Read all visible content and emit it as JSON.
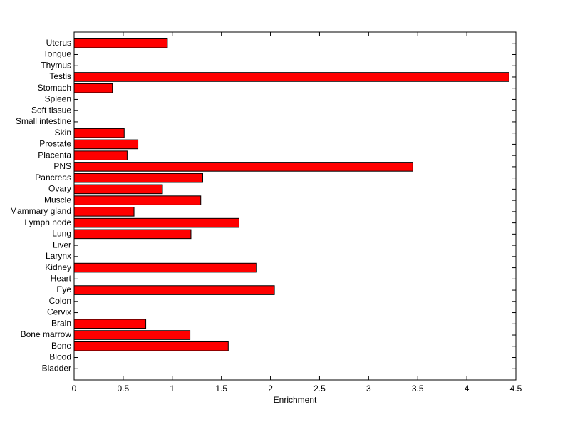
{
  "chart_data": {
    "type": "barh",
    "categories": [
      "Bladder",
      "Blood",
      "Bone",
      "Bone marrow",
      "Brain",
      "Cervix",
      "Colon",
      "Eye",
      "Heart",
      "Kidney",
      "Larynx",
      "Liver",
      "Lung",
      "Lymph node",
      "Mammary gland",
      "Muscle",
      "Ovary",
      "Pancreas",
      "PNS",
      "Placenta",
      "Prostate",
      "Skin",
      "Small intestine",
      "Soft tissue",
      "Spleen",
      "Stomach",
      "Testis",
      "Thymus",
      "Tongue",
      "Uterus"
    ],
    "values": [
      0,
      0,
      1.57,
      1.18,
      0.73,
      0,
      0,
      2.04,
      0,
      1.86,
      0,
      0,
      1.19,
      1.68,
      0.61,
      1.29,
      0.9,
      1.31,
      3.45,
      0.54,
      0.65,
      0.51,
      0,
      0,
      0,
      0.39,
      4.43,
      0,
      0,
      0.95
    ],
    "color": "#ff0000",
    "xlabel": "Enrichment",
    "xlim": [
      0,
      4.5
    ],
    "xticks": [
      0,
      0.5,
      1,
      1.5,
      2,
      2.5,
      3,
      3.5,
      4,
      4.5
    ]
  }
}
